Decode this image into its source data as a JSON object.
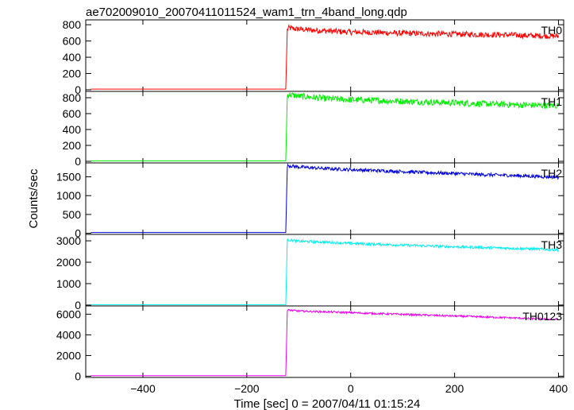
{
  "title": "ae702009010_20070411011524_wam1_trn_4band_long.qdp",
  "ylabel": "Counts/sec",
  "xlabel": "Time [sec] 0 = 2007/04/11 01:15:24",
  "chart_data": [
    {
      "type": "line",
      "name": "TH0",
      "color": "#ff0000",
      "xlim": [
        -510,
        410
      ],
      "ylim": [
        -20,
        860
      ],
      "yticks": [
        0,
        200,
        400,
        600,
        800
      ],
      "ytick_labels": [
        "0",
        "200",
        "400",
        "600",
        "800"
      ],
      "x": [
        -500,
        -125,
        -122,
        -120,
        -100,
        -50,
        0,
        50,
        100,
        150,
        200,
        250,
        300,
        350,
        400
      ],
      "y": [
        8,
        8,
        740,
        760,
        745,
        725,
        710,
        705,
        695,
        690,
        685,
        680,
        675,
        665,
        660
      ],
      "noise": 35
    },
    {
      "type": "line",
      "name": "TH1",
      "color": "#00ee00",
      "xlim": [
        -510,
        410
      ],
      "ylim": [
        -20,
        880
      ],
      "yticks": [
        0,
        200,
        400,
        600,
        800
      ],
      "ytick_labels": [
        "0",
        "200",
        "400",
        "600",
        "800"
      ],
      "x": [
        -500,
        -125,
        -122,
        -120,
        -100,
        -50,
        0,
        50,
        100,
        150,
        200,
        250,
        300,
        350,
        400
      ],
      "y": [
        5,
        5,
        820,
        840,
        820,
        790,
        775,
        765,
        755,
        745,
        735,
        725,
        715,
        705,
        700
      ],
      "noise": 40
    },
    {
      "type": "line",
      "name": "TH2",
      "color": "#0000dd",
      "xlim": [
        -510,
        410
      ],
      "ylim": [
        -30,
        1870
      ],
      "yticks": [
        0,
        500,
        1000,
        1500
      ],
      "ytick_labels": [
        "0",
        "500",
        "1000",
        "1500"
      ],
      "x": [
        -500,
        -125,
        -122,
        -120,
        -100,
        -50,
        0,
        50,
        100,
        150,
        200,
        250,
        300,
        350,
        400
      ],
      "y": [
        20,
        20,
        1780,
        1800,
        1760,
        1720,
        1690,
        1665,
        1640,
        1610,
        1590,
        1560,
        1540,
        1515,
        1490
      ],
      "noise": 45
    },
    {
      "type": "line",
      "name": "TH3",
      "color": "#00eeee",
      "xlim": [
        -510,
        410
      ],
      "ylim": [
        -40,
        3300
      ],
      "yticks": [
        0,
        1000,
        2000,
        3000
      ],
      "ytick_labels": [
        "0",
        "1000",
        "2000",
        "3000"
      ],
      "x": [
        -500,
        -125,
        -122,
        -120,
        -100,
        -50,
        0,
        50,
        100,
        150,
        200,
        250,
        300,
        350,
        400
      ],
      "y": [
        20,
        20,
        3000,
        3050,
        2980,
        2940,
        2880,
        2840,
        2800,
        2760,
        2720,
        2690,
        2660,
        2620,
        2580
      ],
      "noise": 60
    },
    {
      "type": "line",
      "name": "TH0123",
      "color": "#ee00ee",
      "xlim": [
        -510,
        410
      ],
      "ylim": [
        -120,
        6800
      ],
      "yticks": [
        0,
        2000,
        4000,
        6000
      ],
      "ytick_labels": [
        "0",
        "2000",
        "4000",
        "6000"
      ],
      "x": [
        -500,
        -125,
        -122,
        -120,
        -100,
        -50,
        0,
        50,
        100,
        150,
        200,
        250,
        300,
        350,
        400
      ],
      "y": [
        50,
        50,
        6300,
        6400,
        6300,
        6230,
        6150,
        6060,
        5980,
        5900,
        5820,
        5740,
        5660,
        5570,
        5480
      ],
      "noise": 90
    }
  ],
  "xaxis": {
    "ticks": [
      -400,
      -200,
      0,
      200,
      400
    ],
    "tick_labels": [
      "−400",
      "−200",
      "0",
      "200",
      "400"
    ]
  }
}
